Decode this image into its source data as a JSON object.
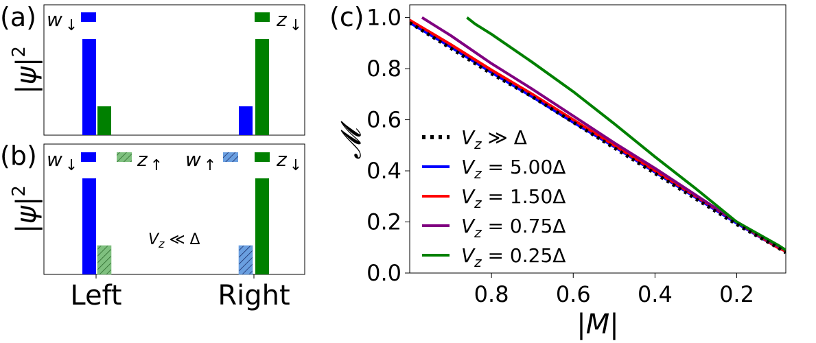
{
  "chart_data": [
    {
      "panel": "(a)",
      "type": "bar",
      "categories": [
        "Left",
        "Right"
      ],
      "ylabel": "|ψ|²",
      "series": [
        {
          "name": "w↓",
          "color": "#0000ff",
          "hatch": false,
          "values": [
            1.0,
            0.3
          ]
        },
        {
          "name": "z↓",
          "color": "#008000",
          "hatch": false,
          "values": [
            0.3,
            1.0
          ]
        }
      ],
      "legend": [
        {
          "label": "w",
          "sub": "↓",
          "color": "#0000ff",
          "hatch": false,
          "placement": "top-left"
        },
        {
          "label": "z",
          "sub": "↓",
          "color": "#008000",
          "hatch": false,
          "placement": "top-right"
        }
      ]
    },
    {
      "panel": "(b)",
      "type": "bar",
      "categories": [
        "Left",
        "Right"
      ],
      "ylabel": "|ψ|²",
      "annotation": "V_z ≪ Δ",
      "series": [
        {
          "name": "w↓",
          "color": "#0000ff",
          "hatch": false,
          "values": [
            1.0,
            0.0
          ]
        },
        {
          "name": "z↑",
          "color": "#7fc07f",
          "hatch": true,
          "values": [
            0.3,
            0.0
          ]
        },
        {
          "name": "w↑",
          "color": "#6a9fe0",
          "hatch": true,
          "values": [
            0.0,
            0.3
          ]
        },
        {
          "name": "z↓",
          "color": "#008000",
          "hatch": false,
          "values": [
            0.0,
            1.0
          ]
        }
      ],
      "legend": [
        {
          "label": "w",
          "sub": "↓",
          "color": "#0000ff",
          "hatch": false
        },
        {
          "label": "z",
          "sub": "↑",
          "color": "#7fc07f",
          "hatch": true
        },
        {
          "label": "w",
          "sub": "↑",
          "color": "#6a9fe0",
          "hatch": true
        },
        {
          "label": "z",
          "sub": "↓",
          "color": "#008000",
          "hatch": false
        }
      ],
      "x_tick_labels": [
        "Left",
        "Right"
      ]
    },
    {
      "panel": "(c)",
      "type": "line",
      "xlabel": "|M|",
      "ylabel": "𝓜",
      "xlim": [
        1.0,
        0.08
      ],
      "ylim": [
        0.0,
        1.05
      ],
      "x_reversed": true,
      "x_ticks": [
        0.8,
        0.6,
        0.4,
        0.2
      ],
      "x_tick_labels": [
        "0.8",
        "0.6",
        "0.4",
        "0.2"
      ],
      "y_ticks": [
        0.0,
        0.2,
        0.4,
        0.6,
        0.8,
        1.0
      ],
      "y_tick_labels": [
        "0.0",
        "0.2",
        "0.4",
        "0.6",
        "0.8",
        "1.0"
      ],
      "legend_placement": "lower-left",
      "series": [
        {
          "name": "V_z ≫ Δ",
          "color": "#000000",
          "style": "dotted",
          "x": [
            1.0,
            0.9,
            0.8,
            0.7,
            0.6,
            0.5,
            0.4,
            0.3,
            0.2,
            0.1,
            0.08
          ],
          "y": [
            0.98,
            0.88,
            0.78,
            0.69,
            0.59,
            0.49,
            0.39,
            0.29,
            0.19,
            0.1,
            0.08
          ]
        },
        {
          "name": "V_z = 5.00Δ",
          "color": "#0000ff",
          "style": "solid",
          "x": [
            1.0,
            0.9,
            0.8,
            0.7,
            0.6,
            0.5,
            0.4,
            0.3,
            0.2,
            0.1,
            0.08
          ],
          "y": [
            0.98,
            0.885,
            0.785,
            0.69,
            0.59,
            0.495,
            0.395,
            0.295,
            0.195,
            0.1,
            0.085
          ]
        },
        {
          "name": "V_z = 1.50Δ",
          "color": "#ff0000",
          "style": "solid",
          "x": [
            1.0,
            0.9,
            0.8,
            0.7,
            0.6,
            0.5,
            0.4,
            0.3,
            0.2,
            0.1,
            0.08
          ],
          "y": [
            0.99,
            0.895,
            0.795,
            0.7,
            0.6,
            0.5,
            0.4,
            0.3,
            0.2,
            0.1,
            0.085
          ]
        },
        {
          "name": "V_z = 0.75Δ",
          "color": "#800080",
          "style": "solid",
          "x": [
            0.97,
            0.9,
            0.8,
            0.7,
            0.6,
            0.5,
            0.4,
            0.3,
            0.2,
            0.1,
            0.08
          ],
          "y": [
            1.0,
            0.93,
            0.82,
            0.72,
            0.615,
            0.51,
            0.41,
            0.305,
            0.2,
            0.105,
            0.09
          ]
        },
        {
          "name": "V_z = 0.25Δ",
          "color": "#008000",
          "style": "solid",
          "x": [
            0.86,
            0.84,
            0.8,
            0.7,
            0.6,
            0.5,
            0.4,
            0.3,
            0.2,
            0.1,
            0.08
          ],
          "y": [
            1.0,
            0.975,
            0.935,
            0.825,
            0.71,
            0.585,
            0.455,
            0.33,
            0.2,
            0.11,
            0.09
          ]
        }
      ]
    }
  ]
}
